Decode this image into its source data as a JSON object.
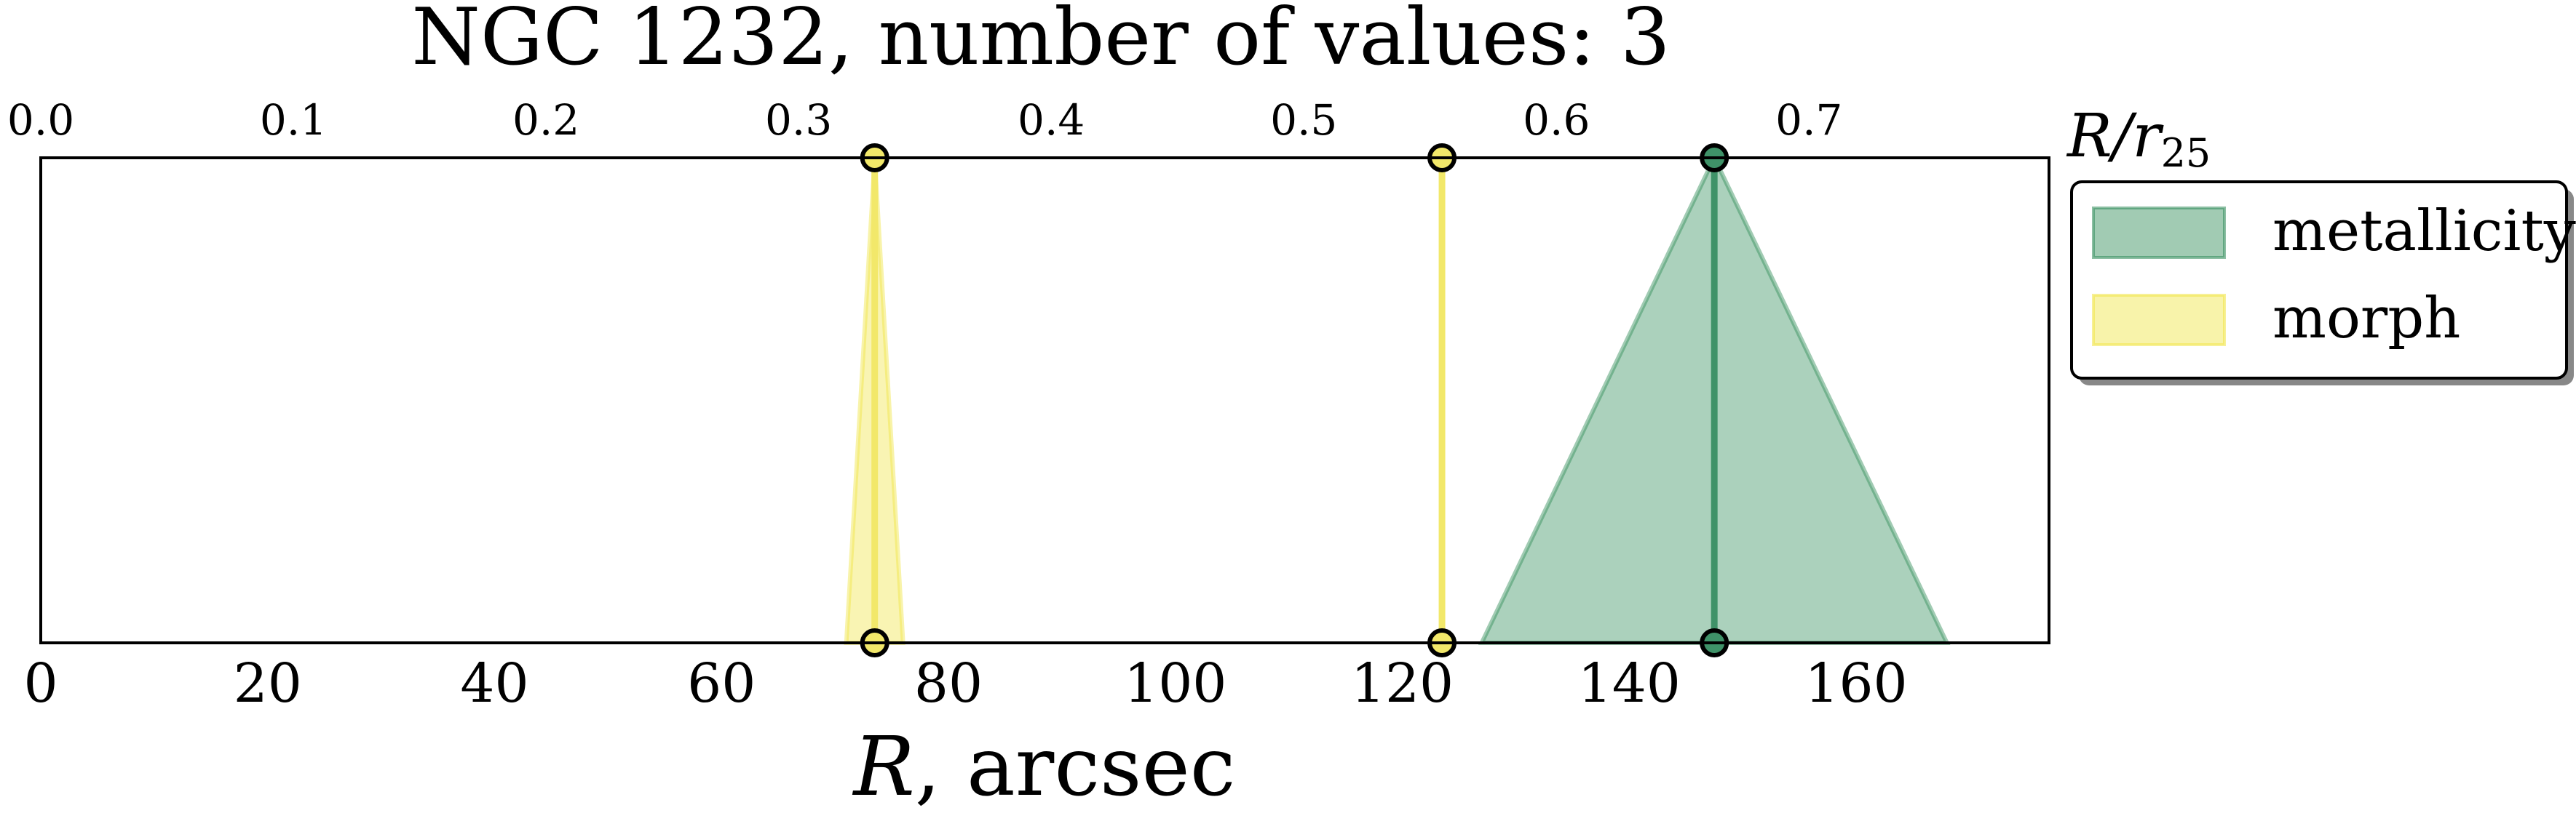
{
  "chart_data": {
    "type": "area",
    "title": "NGC 1232, number of values: 3",
    "xlabel": "R, arcsec",
    "xlabel_italic": "R",
    "xlabel_rest": ", arcsec",
    "x2label": "R/r25",
    "x2label_base": "R/r",
    "x2label_sub": "25",
    "xlim": [
      0,
      177
    ],
    "x_ticks": [
      0,
      20,
      40,
      60,
      80,
      100,
      120,
      140,
      160
    ],
    "x_tick_labels": [
      "0",
      "20",
      "40",
      "60",
      "80",
      "100",
      "120",
      "140",
      "160"
    ],
    "x2lim": [
      0,
      0.795
    ],
    "x2_ticks": [
      0.0,
      0.1,
      0.2,
      0.3,
      0.4,
      0.5,
      0.6,
      0.7
    ],
    "x2_tick_labels": [
      "0.0",
      "0.1",
      "0.2",
      "0.3",
      "0.4",
      "0.5",
      "0.6",
      "0.7"
    ],
    "ylim": [
      0,
      1
    ],
    "legend_position": "outside-right",
    "series": [
      {
        "name": "metallicity",
        "color": "#2e8b57",
        "line_color": "#3f9268",
        "triangles": [
          {
            "center": 147.5,
            "left": 127,
            "right": 168
          }
        ]
      },
      {
        "name": "morph",
        "color": "#f0e442",
        "line_color": "#f2e86a",
        "triangles": [
          {
            "center": 73.5,
            "left": 71,
            "right": 76
          },
          {
            "center": 123.5,
            "left": 123.5,
            "right": 123.5
          }
        ]
      }
    ]
  }
}
